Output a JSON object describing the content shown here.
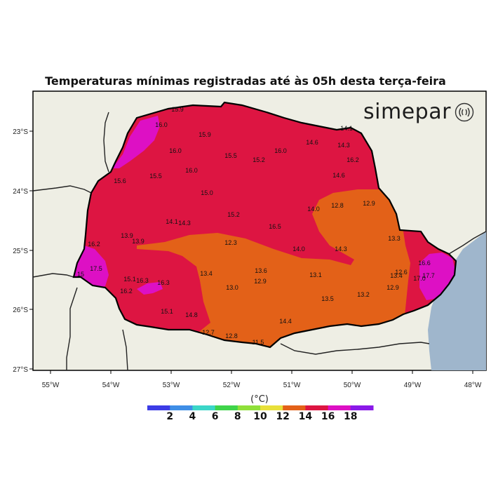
{
  "title": "Temperaturas mínimas registradas até às 05h desta terça-feira",
  "brand": {
    "name": "simepar",
    "icon": "wave-signal-icon"
  },
  "map": {
    "region": "Paraná",
    "lat_ticks": [
      "23°S",
      "24°S",
      "25°S",
      "26°S",
      "27°S"
    ],
    "lon_ticks": [
      "55°W",
      "54°W",
      "53°W",
      "52°W",
      "51°W",
      "50°W",
      "49°W",
      "48°W"
    ],
    "colors": {
      "land": "#eeeee4",
      "ocean": "#9fb6cc",
      "t12_14": "#e36118",
      "t14_16": "#dd1542",
      "t16_18": "#dd10c4"
    },
    "temperature_labels": [
      "16.0",
      "15.9",
      "14.6",
      "14.3",
      "16.0",
      "15.5",
      "15.2",
      "16.0",
      "16.2",
      "15.5",
      "16.0",
      "14.6",
      "15.6",
      "15.0",
      "14.0",
      "12.8",
      "12.9",
      "15.2",
      "14.1",
      "14.3",
      "16.5",
      "13.9",
      "13.9",
      "12.3",
      "14.0",
      "14.3",
      "13.3",
      "16.2",
      "17.5",
      "13.4",
      "13.6",
      "13.1",
      "15.1",
      "16.3",
      "16.3",
      "12.9",
      "13.0",
      "16.2",
      "12.6",
      "16.6",
      "17.7",
      "13.4",
      "17.0",
      "12.9",
      "13.5",
      "13.2",
      "15.1",
      "14.8",
      "14.4",
      "12.7",
      "12.8",
      "11.5",
      "14.1",
      "15.9",
      "15"
    ]
  },
  "colorbar": {
    "unit": "(°C)",
    "labels": [
      "2",
      "4",
      "6",
      "8",
      "10",
      "12",
      "14",
      "16",
      "18"
    ],
    "colors": [
      "#3c3ce6",
      "#3f8ee6",
      "#3bd6c8",
      "#3fd44a",
      "#8fe03a",
      "#e8e03a",
      "#e36118",
      "#dd1542",
      "#dd10c4",
      "#8a19e8"
    ]
  }
}
